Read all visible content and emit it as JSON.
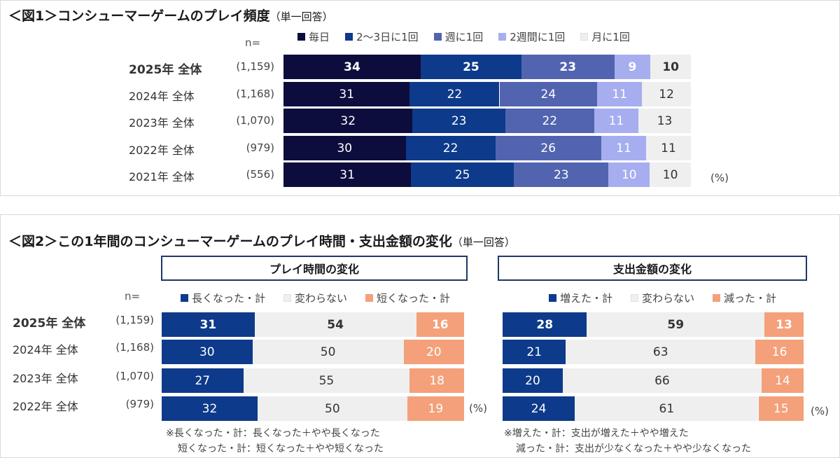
{
  "figure1": {
    "title": "＜図1＞コンシューマーゲームのプレイ頻度",
    "subtitle": "（単一回答）",
    "n_label": "n=",
    "unit": "(%)",
    "chart_data": {
      "type": "bar",
      "stacked": true,
      "orientation": "horizontal",
      "categories": [
        "2025年 全体",
        "2024年 全体",
        "2023年 全体",
        "2022年 全体",
        "2021年 全体"
      ],
      "n": [
        "(1,159)",
        "(1,168)",
        "(1,070)",
        "(979)",
        "(556)"
      ],
      "series": [
        {
          "name": "毎日",
          "color": "#0d0d3d",
          "text": "#ffffff",
          "values": [
            34,
            31,
            32,
            30,
            31
          ]
        },
        {
          "name": "2～3日に1回",
          "color": "#0d3a8a",
          "text": "#ffffff",
          "values": [
            25,
            22,
            23,
            22,
            25
          ]
        },
        {
          "name": "週に1回",
          "color": "#5264b0",
          "text": "#ffffff",
          "values": [
            23,
            24,
            22,
            26,
            23
          ]
        },
        {
          "name": "2週間に1回",
          "color": "#a6aef0",
          "text": "#ffffff",
          "values": [
            9,
            11,
            11,
            11,
            10
          ]
        },
        {
          "name": "月に1回",
          "color": "#efefef",
          "text": "#333333",
          "values": [
            10,
            12,
            13,
            11,
            10
          ]
        }
      ]
    }
  },
  "figure2": {
    "title": "＜図2＞この1年間のコンシューマーゲームのプレイ時間・支出金額の変化",
    "subtitle": "（単一回答）",
    "n_label": "n=",
    "categories": [
      "2025年 全体",
      "2024年 全体",
      "2023年 全体",
      "2022年 全体"
    ],
    "n": [
      "(1,159)",
      "(1,168)",
      "(1,070)",
      "(979)"
    ],
    "left": {
      "header": "プレイ時間の変化",
      "unit": "(%)",
      "notes": [
        "※長くなった・計：長くなった＋やや長くなった",
        "短くなった・計：短くなった＋やや短くなった"
      ],
      "chart_data": {
        "type": "bar",
        "stacked": true,
        "orientation": "horizontal",
        "categories": [
          "2025年 全体",
          "2024年 全体",
          "2023年 全体",
          "2022年 全体"
        ],
        "series": [
          {
            "name": "長くなった・計",
            "color": "#0d3a8a",
            "text": "#ffffff",
            "values": [
              31,
              30,
              27,
              32
            ]
          },
          {
            "name": "変わらない",
            "color": "#efefef",
            "text": "#333333",
            "values": [
              54,
              50,
              55,
              50
            ]
          },
          {
            "name": "短くなった・計",
            "color": "#f4a07a",
            "text": "#ffffff",
            "values": [
              16,
              20,
              18,
              19
            ]
          }
        ]
      }
    },
    "right": {
      "header": "支出金額の変化",
      "unit": "(%)",
      "notes": [
        "※増えた・計：支出が増えた＋やや増えた",
        "減った・計：支出が少なくなった＋やや少なくなった"
      ],
      "chart_data": {
        "type": "bar",
        "stacked": true,
        "orientation": "horizontal",
        "categories": [
          "2025年 全体",
          "2024年 全体",
          "2023年 全体",
          "2022年 全体"
        ],
        "series": [
          {
            "name": "増えた・計",
            "color": "#0d3a8a",
            "text": "#ffffff",
            "values": [
              28,
              21,
              20,
              24
            ]
          },
          {
            "name": "変わらない",
            "color": "#efefef",
            "text": "#333333",
            "values": [
              59,
              63,
              66,
              61
            ]
          },
          {
            "name": "減った・計",
            "color": "#f4a07a",
            "text": "#ffffff",
            "values": [
              13,
              16,
              14,
              15
            ]
          }
        ]
      }
    }
  }
}
